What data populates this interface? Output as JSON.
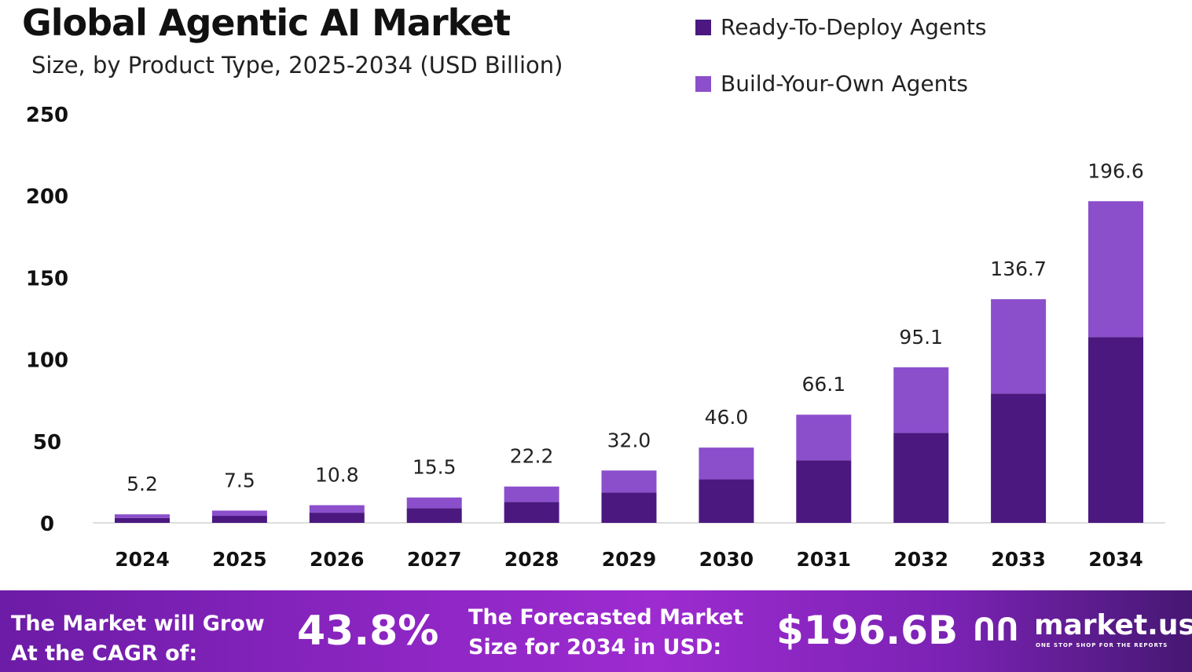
{
  "chart_data": {
    "type": "bar",
    "stacked": true,
    "title": "Global Agentic AI Market",
    "subtitle": "Size, by Product Type, 2025-2034 (USD Billion)",
    "categories": [
      "2024",
      "2025",
      "2026",
      "2027",
      "2028",
      "2029",
      "2030",
      "2031",
      "2032",
      "2033",
      "2034"
    ],
    "series": [
      {
        "name": "Ready-To-Deploy Agents",
        "color": "#4b1880",
        "values": [
          3.0,
          4.3,
          6.2,
          9.0,
          12.8,
          18.5,
          26.6,
          38.2,
          55.0,
          79.0,
          113.6
        ]
      },
      {
        "name": "Build-Your-Own Agents",
        "color": "#8b4fcc",
        "values": [
          2.2,
          3.2,
          4.6,
          6.5,
          9.4,
          13.5,
          19.4,
          27.9,
          40.1,
          57.7,
          83.0
        ]
      }
    ],
    "totals": [
      "5.2",
      "7.5",
      "10.8",
      "15.5",
      "22.2",
      "32.0",
      "46.0",
      "66.1",
      "95.1",
      "136.7",
      "196.6"
    ],
    "yticks": [
      "0",
      "50",
      "100",
      "150",
      "200",
      "250"
    ],
    "ylim": [
      0,
      250
    ],
    "grid": false,
    "legend_position": "top-right"
  },
  "footer": {
    "cagr_label_1": "The Market will Grow",
    "cagr_label_2": "At the CAGR of:",
    "cagr_value": "43.8%",
    "forecast_label_1": "The Forecasted Market",
    "forecast_label_2": "Size for 2034 in USD:",
    "forecast_value": "$196.6B",
    "brand": "market.us",
    "brand_tagline": "ONE STOP SHOP FOR THE REPORTS"
  }
}
